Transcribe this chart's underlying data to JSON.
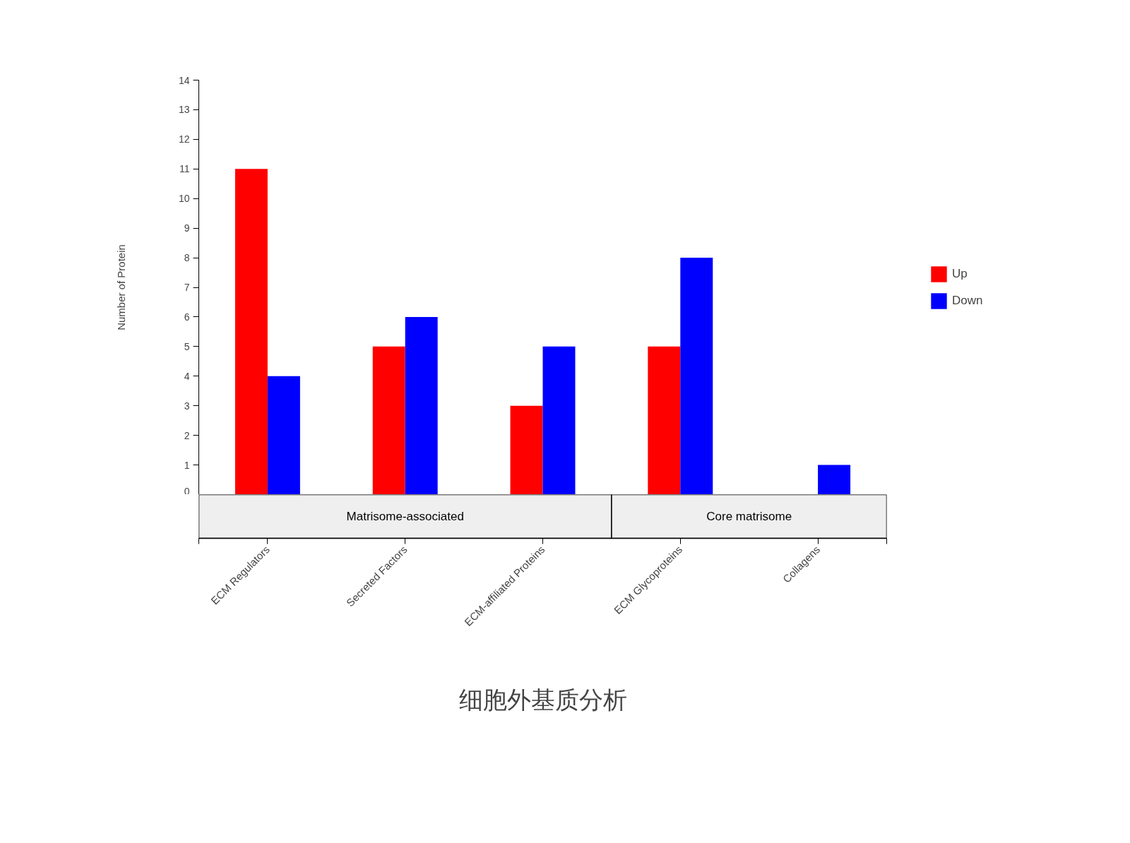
{
  "chart_data": {
    "type": "bar",
    "title": "细胞外基质分析",
    "ylabel": "Number of Protein",
    "categories": [
      "ECM Regulators",
      "Secreted Factors",
      "ECM-affiliated Proteins",
      "ECM Glycoproteins",
      "Collagens"
    ],
    "series": [
      {
        "name": "Up",
        "color": "#ff0000",
        "values": [
          11,
          5,
          3,
          5,
          null
        ]
      },
      {
        "name": "Down",
        "color": "#0000ff",
        "values": [
          4,
          6,
          5,
          8,
          1
        ]
      }
    ],
    "ylim": [
      0,
      14
    ],
    "yticks": [
      0,
      1,
      2,
      3,
      4,
      5,
      6,
      7,
      8,
      9,
      10,
      11,
      12,
      13,
      14
    ],
    "annotations": [
      "Matrisome-associated",
      "Core matrisome"
    ],
    "legend": "right",
    "grid": false
  }
}
